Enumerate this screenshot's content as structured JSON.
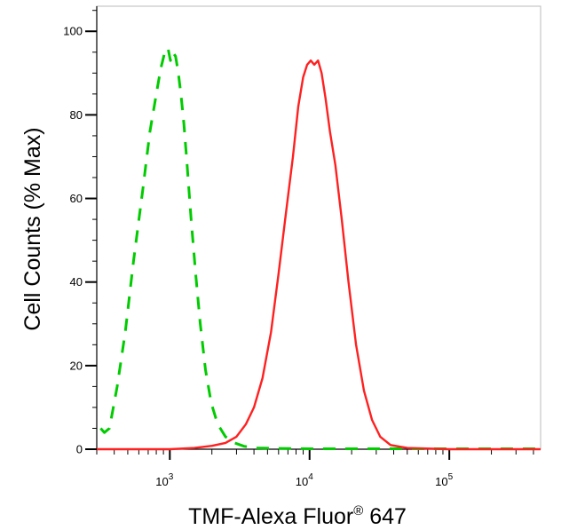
{
  "chart_data": {
    "type": "line",
    "xlabel": "TMF-Alexa Fluor",
    "xlabel_sup": "®",
    "xlabel_suffix": " 647",
    "ylabel": "Cell Counts (% Max)",
    "x_scale": "log",
    "xlim": [
      300,
      450000
    ],
    "ylim": [
      0,
      106
    ],
    "y_ticks": [
      0,
      20,
      40,
      60,
      80,
      100
    ],
    "x_ticks": [
      {
        "value": 1000,
        "base": "10",
        "exp": "3"
      },
      {
        "value": 10000,
        "base": "10",
        "exp": "4"
      },
      {
        "value": 100000,
        "base": "10",
        "exp": "5"
      }
    ],
    "series": [
      {
        "color": "#00cc00",
        "dash": true,
        "x": [
          320,
          340,
          370,
          420,
          480,
          550,
          640,
          720,
          800,
          860,
          920,
          970,
          1010,
          1050,
          1100,
          1150,
          1200,
          1260,
          1330,
          1420,
          1530,
          1650,
          1800,
          1980,
          2200,
          2500,
          2900,
          3400,
          4200,
          6000,
          10000,
          30000,
          100000,
          450000
        ],
        "y": [
          5,
          4,
          5,
          15,
          28,
          45,
          62,
          76,
          85,
          91,
          95,
          96,
          93,
          95,
          94,
          90,
          85,
          78,
          68,
          55,
          42,
          30,
          19,
          11,
          6,
          3,
          1.5,
          0.7,
          0.3,
          0.2,
          0.1,
          0.1,
          0.1,
          0.1
        ]
      },
      {
        "color": "#ff2020",
        "dash": false,
        "x": [
          300,
          1000,
          1500,
          2000,
          2500,
          3000,
          3500,
          4000,
          4600,
          5300,
          6000,
          6800,
          7600,
          8300,
          9000,
          9600,
          10200,
          10800,
          11500,
          12200,
          13000,
          14000,
          15300,
          17000,
          19000,
          21500,
          24500,
          28000,
          32000,
          38000,
          50000,
          100000,
          450000
        ],
        "y": [
          0,
          0,
          0.3,
          0.8,
          1.5,
          3,
          6,
          10,
          17,
          28,
          42,
          57,
          70,
          82,
          89,
          92,
          93,
          92,
          93,
          90,
          84,
          76,
          68,
          55,
          40,
          25,
          14,
          7,
          3,
          1,
          0.3,
          0,
          0
        ]
      }
    ]
  }
}
